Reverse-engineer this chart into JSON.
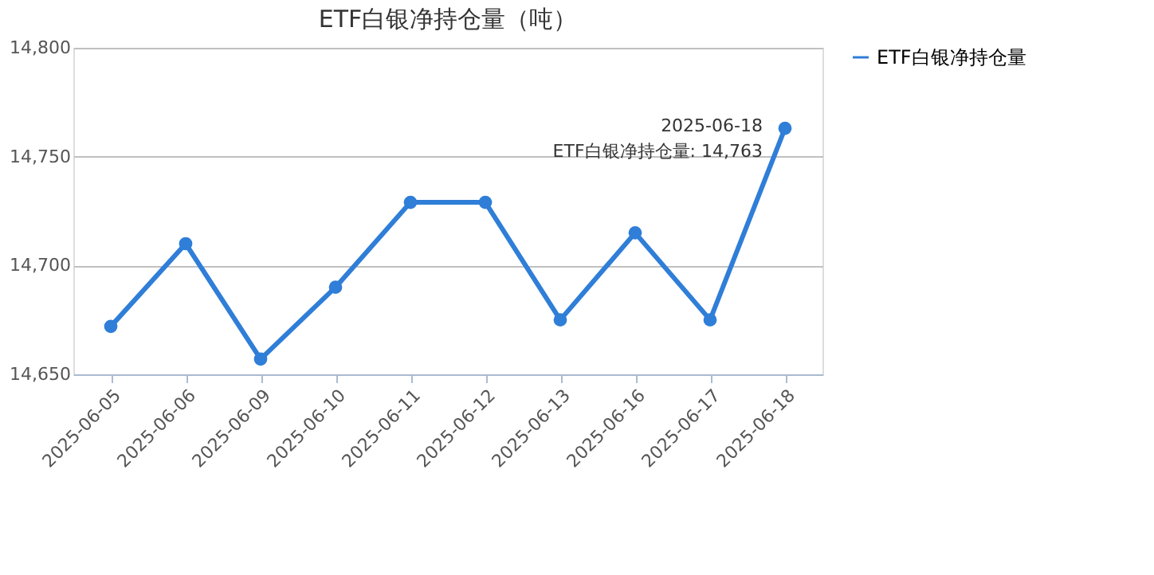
{
  "chart_data": {
    "type": "line",
    "title": "ETF白银净持仓量（吨）",
    "categories": [
      "2025-06-05",
      "2025-06-06",
      "2025-06-09",
      "2025-06-10",
      "2025-06-11",
      "2025-06-12",
      "2025-06-13",
      "2025-06-16",
      "2025-06-17",
      "2025-06-18"
    ],
    "series": [
      {
        "name": "ETF白银净持仓量",
        "color": "#2f7ed8",
        "values": [
          14672,
          14710,
          14657,
          14690,
          14729,
          14729,
          14675,
          14715,
          14675,
          14763
        ]
      }
    ],
    "ylim": [
      14650,
      14800
    ],
    "yticks": [
      {
        "value": 14650,
        "label": "14,650"
      },
      {
        "value": 14700,
        "label": "14,700"
      },
      {
        "value": 14750,
        "label": "14,750"
      },
      {
        "value": 14800,
        "label": "14,800"
      }
    ],
    "grid": "y",
    "legend": "right",
    "marker": "circle",
    "line_style": "solid",
    "annotations": [
      {
        "text": "2025-06-18\nETF白银净持仓量: 14,763",
        "x": "2025-06-18",
        "y": 14763
      }
    ]
  }
}
